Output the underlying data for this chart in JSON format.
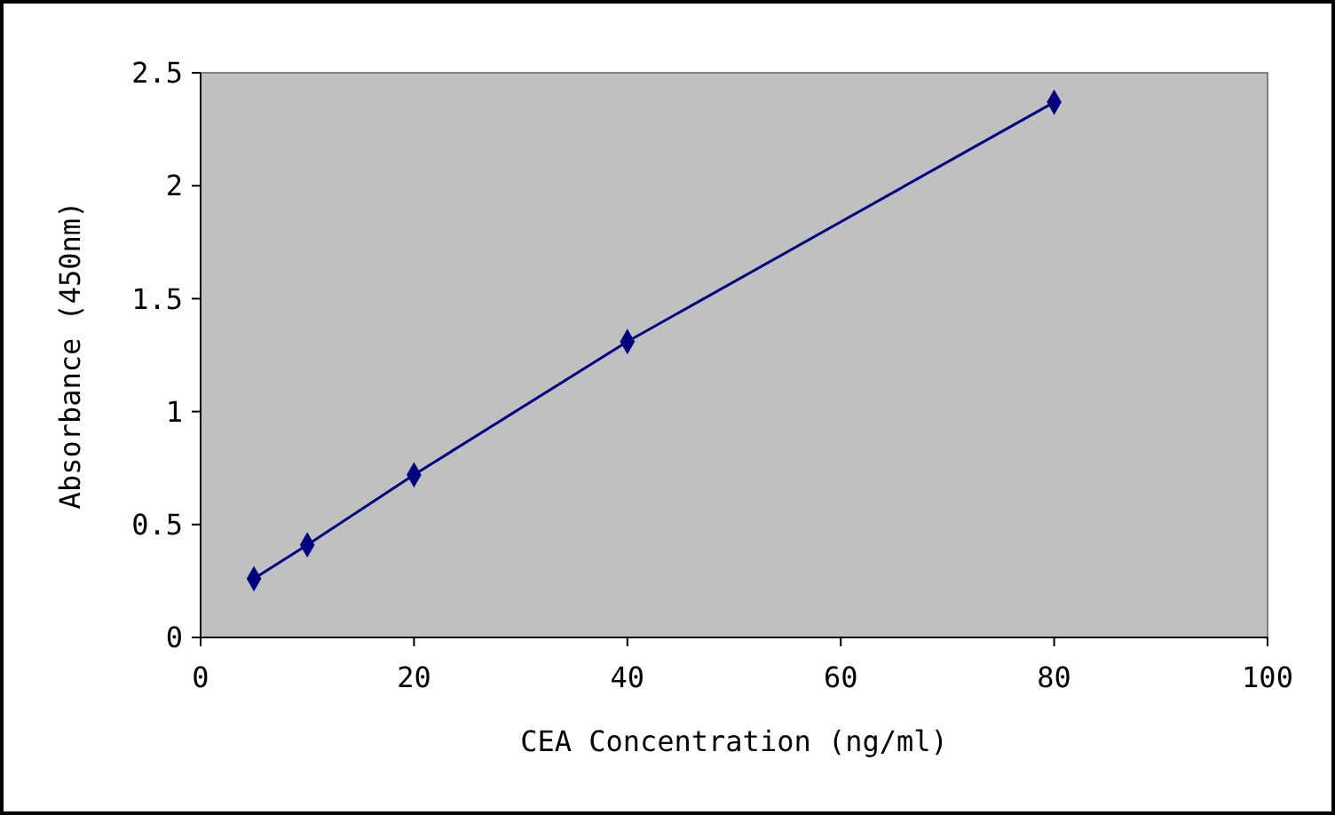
{
  "chart_data": {
    "type": "line",
    "xlabel": "CEA Concentration (ng/ml)",
    "ylabel": "Absorbance (450nm)",
    "x": [
      5,
      10,
      20,
      40,
      80
    ],
    "series": [
      {
        "color": "#000080",
        "values": [
          0.26,
          0.41,
          0.72,
          1.31,
          2.37
        ]
      }
    ],
    "xlim": [
      0,
      100
    ],
    "xticks": [
      0,
      20,
      40,
      60,
      80,
      100
    ],
    "ylim": [
      0,
      2.5
    ],
    "yticks": [
      0,
      0.5,
      1,
      1.5,
      2,
      2.5
    ],
    "marker": "diamond",
    "line_style": "solid"
  }
}
